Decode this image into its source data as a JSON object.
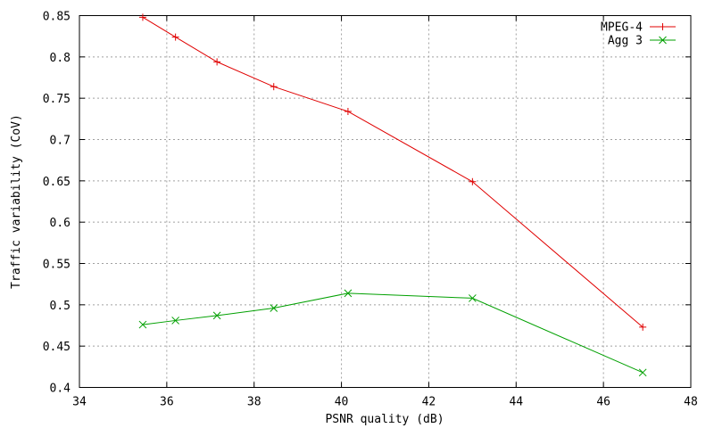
{
  "chart_data": {
    "type": "line",
    "title": "",
    "xlabel": "PSNR quality (dB)",
    "ylabel": "Traffic variability (CoV)",
    "xlim": [
      34,
      48
    ],
    "ylim": [
      0.4,
      0.85
    ],
    "x_ticks": [
      34,
      36,
      38,
      40,
      42,
      44,
      46,
      48
    ],
    "y_ticks": [
      0.4,
      0.45,
      0.5,
      0.55,
      0.6,
      0.65,
      0.7,
      0.75,
      0.8,
      0.85
    ],
    "x_tick_labels": [
      "34",
      "36",
      "38",
      "40",
      "42",
      "44",
      "46",
      "48"
    ],
    "y_tick_labels": [
      "0.4",
      "0.45",
      "0.5",
      "0.55",
      "0.6",
      "0.65",
      "0.7",
      "0.75",
      "0.8",
      "0.85"
    ],
    "grid": true,
    "legend_position": "top-right",
    "series": [
      {
        "name": "MPEG-4",
        "color": "#e00000",
        "marker": "plus",
        "x": [
          35.45,
          36.2,
          37.15,
          38.45,
          40.15,
          43.0,
          46.9
        ],
        "y": [
          0.848,
          0.824,
          0.794,
          0.764,
          0.734,
          0.649,
          0.473
        ]
      },
      {
        "name": "Agg 3",
        "color": "#00a000",
        "marker": "cross",
        "x": [
          35.45,
          36.2,
          37.15,
          38.45,
          40.15,
          43.0,
          46.9
        ],
        "y": [
          0.476,
          0.481,
          0.487,
          0.496,
          0.514,
          0.508,
          0.418
        ]
      }
    ]
  }
}
